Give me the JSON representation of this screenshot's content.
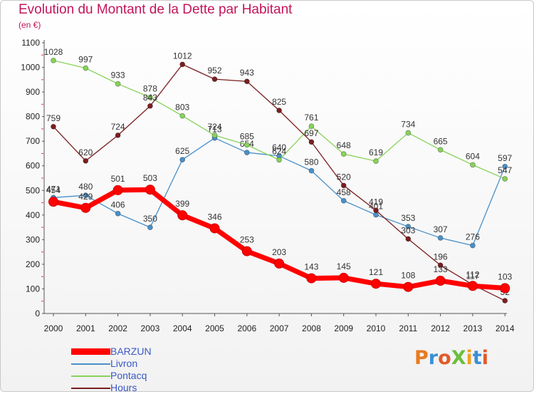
{
  "header": {
    "title": "Evolution du Montant de la Dette par Habitant",
    "subtitle": "(en €)"
  },
  "logo": {
    "text": "ProXiti"
  },
  "chart_data": {
    "type": "line",
    "x": [
      "2000",
      "2001",
      "2002",
      "2003",
      "2004",
      "2005",
      "2006",
      "2007",
      "2008",
      "2009",
      "2010",
      "2011",
      "2012",
      "2013",
      "2014"
    ],
    "ylim": [
      0,
      1100
    ],
    "yticks": [
      0,
      100,
      200,
      300,
      400,
      500,
      600,
      700,
      800,
      900,
      1000,
      1100
    ],
    "grid": false,
    "legend_position": "bottom-left",
    "series": [
      {
        "name": "BARZUN",
        "color": "#ff0000",
        "values": [
          454,
          429,
          501,
          503,
          399,
          346,
          253,
          203,
          143,
          145,
          121,
          108,
          133,
          112,
          103
        ]
      },
      {
        "name": "Livron",
        "color": "#4a90c8",
        "values": [
          471,
          480,
          406,
          350,
          625,
          713,
          654,
          640,
          580,
          458,
          401,
          353,
          307,
          276,
          597
        ]
      },
      {
        "name": "Pontacq",
        "color": "#88d25a",
        "values": [
          1028,
          997,
          933,
          878,
          803,
          724,
          685,
          624,
          761,
          648,
          619,
          734,
          665,
          604,
          547
        ]
      },
      {
        "name": "Hours",
        "color": "#7a1e1e",
        "values": [
          759,
          620,
          724,
          843,
          1012,
          952,
          943,
          825,
          697,
          520,
          419,
          303,
          196,
          117,
          52
        ]
      }
    ]
  }
}
